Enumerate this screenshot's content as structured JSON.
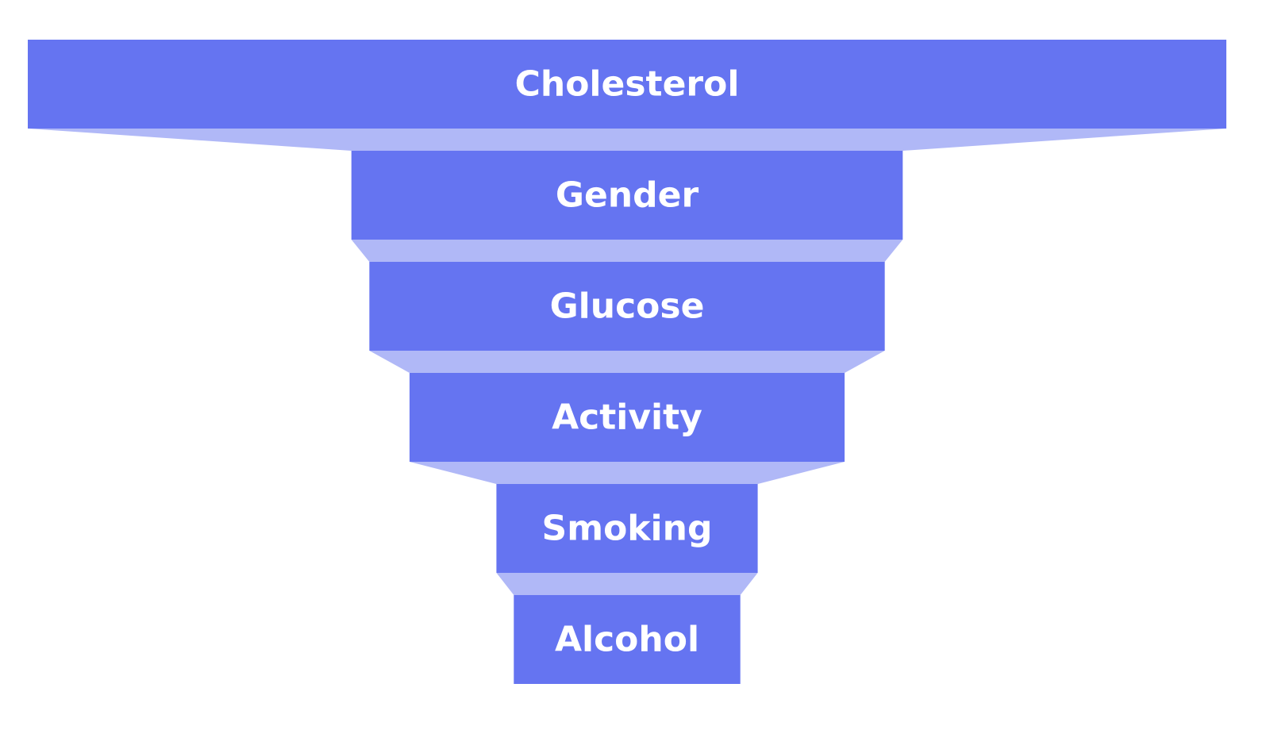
{
  "chart_data": {
    "type": "funnel",
    "title": "",
    "stages": [
      {
        "label": "Cholesterol",
        "value": 100
      },
      {
        "label": "Gender",
        "value": 46
      },
      {
        "label": "Glucose",
        "value": 43
      },
      {
        "label": "Activity",
        "value": 36.3
      },
      {
        "label": "Smoking",
        "value": 21.8
      },
      {
        "label": "Alcohol",
        "value": 18.9
      }
    ],
    "colors": {
      "bar": "#6574f1",
      "connector": "#b0b8f7",
      "label": "#ffffff"
    }
  }
}
